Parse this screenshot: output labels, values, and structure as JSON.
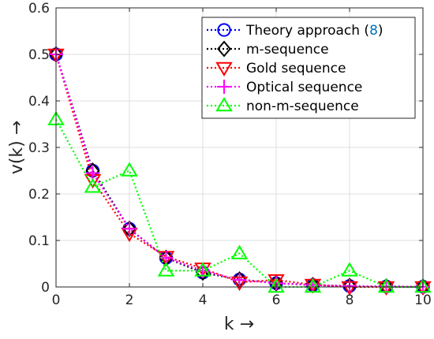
{
  "chart_data": {
    "type": "line",
    "xlabel": "k →",
    "ylabel": "v(k) →",
    "xlim": [
      0,
      10
    ],
    "ylim": [
      0,
      0.6
    ],
    "xticks": [
      0,
      2,
      4,
      6,
      8,
      10
    ],
    "yticks": [
      0,
      0.1,
      0.2,
      0.3,
      0.4,
      0.5,
      0.6
    ],
    "grid": true,
    "legend_position": "top-right",
    "x": [
      0,
      1,
      2,
      3,
      4,
      5,
      6,
      7,
      8,
      9,
      10
    ],
    "series": [
      {
        "name": "Theory approach",
        "name_ref": "8",
        "color": "#0000ff",
        "ref_color": "#0072bd",
        "marker": "circle",
        "values": [
          0.5,
          0.25,
          0.125,
          0.0625,
          0.031,
          0.016,
          0.008,
          0.004,
          0.002,
          0.001,
          0.0005
        ]
      },
      {
        "name": "m-sequence",
        "color": "#000000",
        "marker": "diamond",
        "values": [
          0.5,
          0.25,
          0.125,
          0.0625,
          0.031,
          0.016,
          0.008,
          0.004,
          0.002,
          0.001,
          0.0005
        ]
      },
      {
        "name": "Gold sequence",
        "color": "#ff0000",
        "marker": "triangle-down",
        "values": [
          0.5,
          0.23,
          0.115,
          0.065,
          0.04,
          0.01,
          0.015,
          0.005,
          0.0,
          0.0,
          0.0
        ]
      },
      {
        "name": "Optical sequence",
        "color": "#ff00ff",
        "marker": "plus",
        "values": [
          0.5,
          0.245,
          0.125,
          0.0625,
          0.035,
          0.015,
          0.008,
          0.004,
          0.002,
          0.001,
          0.0005
        ]
      },
      {
        "name": "non-m-sequence",
        "color": "#00ff00",
        "marker": "triangle-up",
        "values": [
          0.36,
          0.215,
          0.25,
          0.035,
          0.035,
          0.072,
          0.0,
          0.0,
          0.035,
          0.0,
          0.0
        ]
      }
    ]
  }
}
